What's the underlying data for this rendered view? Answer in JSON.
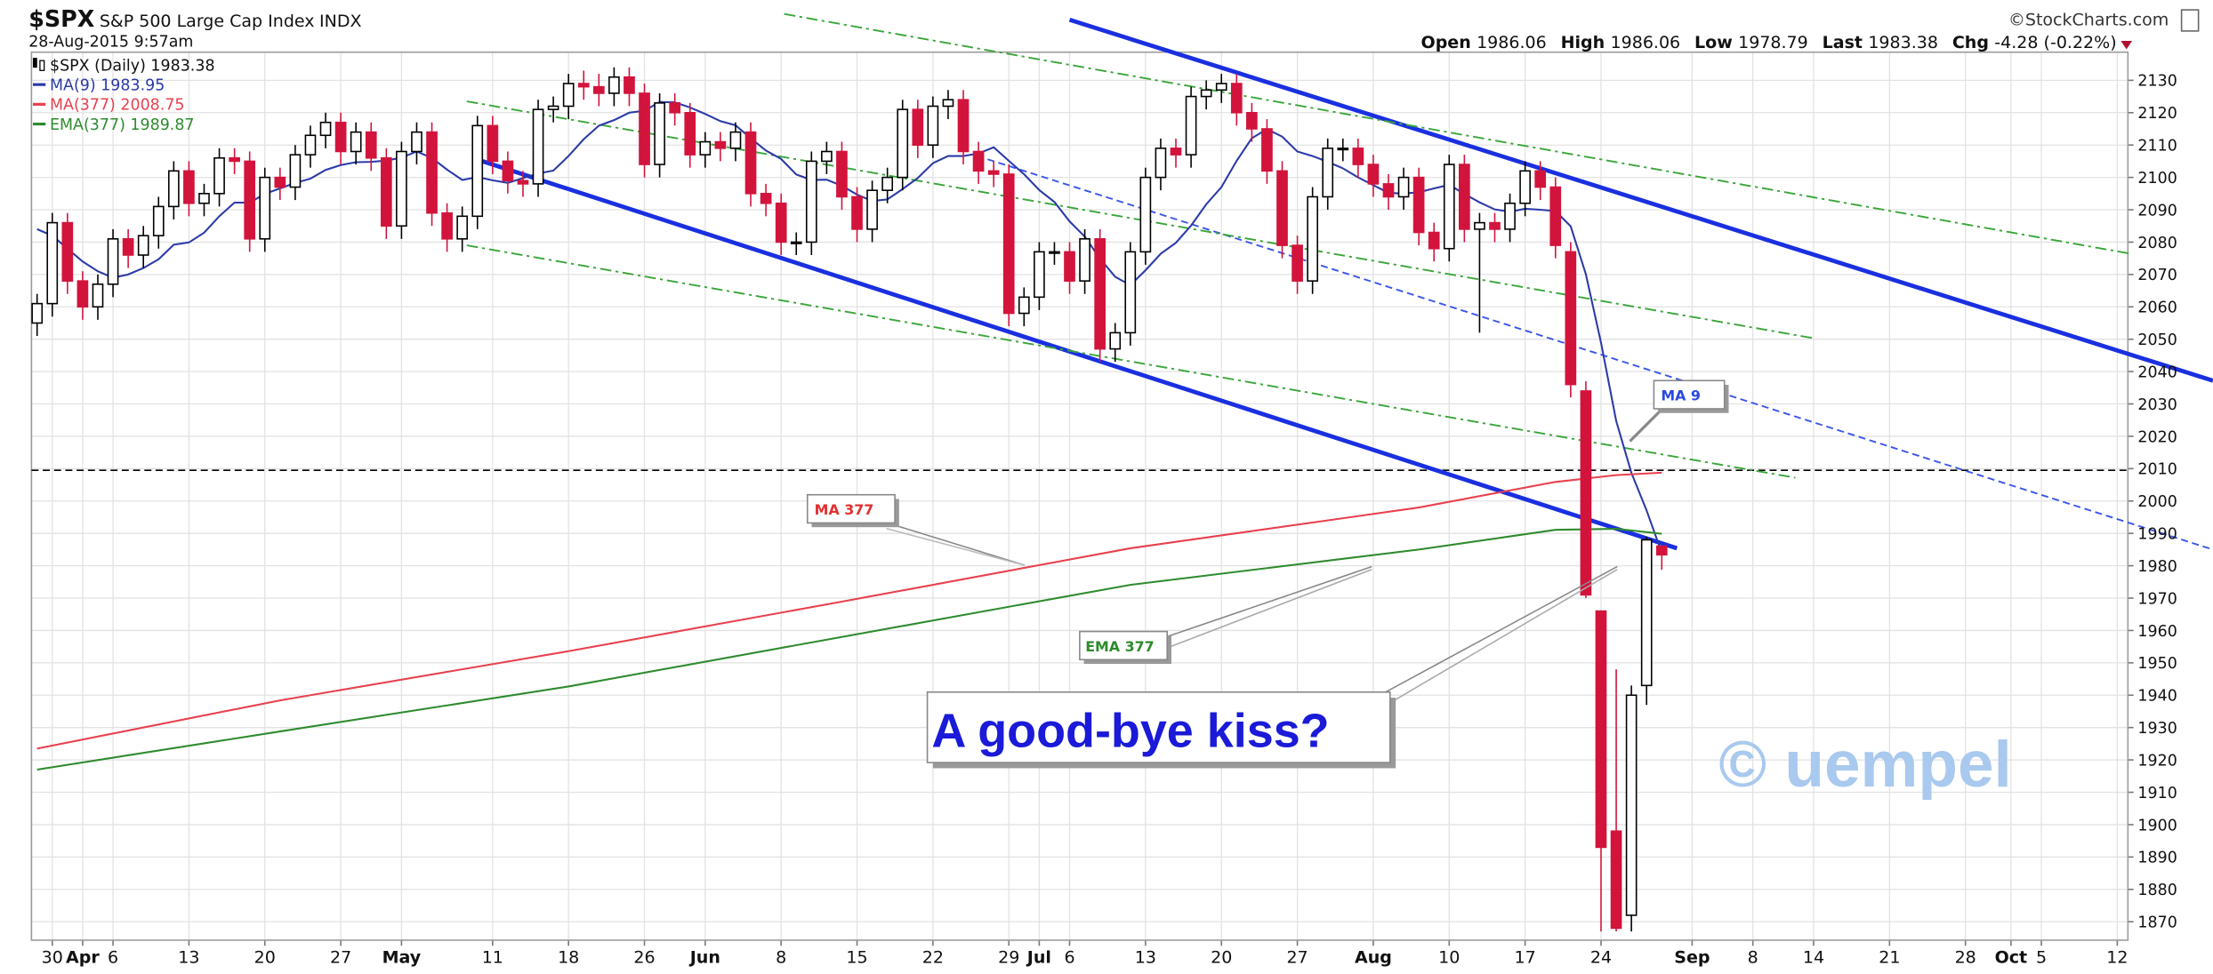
{
  "chart_data": {
    "type": "candlestick",
    "symbol": "$SPX",
    "title": "S&P 500 Large Cap Index",
    "exchange": "INDX",
    "timestamp": "28-Aug-2015 9:57am",
    "source": "©StockCharts.com",
    "quote": [
      {
        "label": "Open",
        "value": 1986.06
      },
      {
        "label": "High",
        "value": 1986.06
      },
      {
        "label": "Low",
        "value": 1978.79
      },
      {
        "label": "Last",
        "value": 1983.38
      },
      {
        "label": "Chg",
        "value": "-4.28 (-0.22%)"
      }
    ],
    "xlim": [
      -0.37,
      137.7
    ],
    "ylim": [
      1864.3,
      2138.7
    ],
    "yticks": [
      1870,
      1880,
      1890,
      1900,
      1910,
      1920,
      1930,
      1940,
      1950,
      1960,
      1970,
      1980,
      1990,
      2000,
      2010,
      2020,
      2030,
      2040,
      2050,
      2060,
      2070,
      2080,
      2090,
      2100,
      2110,
      2120,
      2130
    ],
    "xticks": [
      {
        "value": 1,
        "label": "30"
      },
      {
        "value": 3,
        "label": "Apr"
      },
      {
        "value": 5,
        "label": "6"
      },
      {
        "value": 10,
        "label": "13"
      },
      {
        "value": 15,
        "label": "20"
      },
      {
        "value": 20,
        "label": "27"
      },
      {
        "value": 24,
        "label": "May"
      },
      {
        "value": 30,
        "label": "11"
      },
      {
        "value": 35,
        "label": "18"
      },
      {
        "value": 40,
        "label": "26"
      },
      {
        "value": 44,
        "label": "Jun"
      },
      {
        "value": 49,
        "label": "8"
      },
      {
        "value": 54,
        "label": "15"
      },
      {
        "value": 59,
        "label": "22"
      },
      {
        "value": 64,
        "label": "29"
      },
      {
        "value": 66,
        "label": "Jul"
      },
      {
        "value": 68,
        "label": "6"
      },
      {
        "value": 73,
        "label": "13"
      },
      {
        "value": 78,
        "label": "20"
      },
      {
        "value": 83,
        "label": "27"
      },
      {
        "value": 88,
        "label": "Aug"
      },
      {
        "value": 93,
        "label": "10"
      },
      {
        "value": 98,
        "label": "17"
      },
      {
        "value": 103,
        "label": "24"
      },
      {
        "value": 109,
        "label": "Sep"
      },
      {
        "value": 113,
        "label": "8"
      },
      {
        "value": 117,
        "label": "14"
      },
      {
        "value": 122,
        "label": "21"
      },
      {
        "value": 127,
        "label": "28"
      },
      {
        "value": 130,
        "label": "Oct"
      },
      {
        "value": 132,
        "label": "5"
      },
      {
        "value": 137,
        "label": "12"
      }
    ],
    "grid": true,
    "candles": {
      "name": "$SPX (Daily) 1983.38",
      "up_color": "#000000",
      "down_color": "#d2143c",
      "x": [
        0,
        1,
        2,
        3,
        4,
        5,
        6,
        7,
        8,
        9,
        10,
        11,
        12,
        13,
        14,
        15,
        16,
        17,
        18,
        19,
        20,
        21,
        22,
        23,
        24,
        25,
        26,
        27,
        28,
        29,
        30,
        31,
        32,
        33,
        34,
        35,
        36,
        37,
        38,
        39,
        40,
        41,
        42,
        43,
        44,
        45,
        46,
        47,
        48,
        49,
        50,
        51,
        52,
        53,
        54,
        55,
        56,
        57,
        58,
        59,
        60,
        61,
        62,
        63,
        64,
        65,
        66,
        67,
        68,
        69,
        70,
        71,
        72,
        73,
        74,
        75,
        76,
        77,
        78,
        79,
        80,
        81,
        82,
        83,
        84,
        85,
        86,
        87,
        88,
        89,
        90,
        91,
        92,
        93,
        94,
        95,
        96,
        97,
        98,
        99,
        100,
        101,
        102,
        103,
        104,
        105,
        106,
        107
      ],
      "open": [
        2055,
        2061,
        2086,
        2068,
        2060,
        2067,
        2081,
        2076,
        2082,
        2091,
        2102,
        2092,
        2095,
        2106,
        2105,
        2081,
        2100,
        2097,
        2107,
        2113,
        2117,
        2108,
        2114,
        2106,
        2085,
        2108,
        2114,
        2089,
        2081,
        2088,
        2116,
        2105,
        2099,
        2098,
        2121,
        2122,
        2129,
        2128,
        2126,
        2131,
        2126,
        2104,
        2123,
        2120,
        2107,
        2111,
        2109,
        2114,
        2095,
        2092,
        2080,
        2080,
        2105,
        2108,
        2094,
        2084,
        2096,
        2100,
        2121,
        2110,
        2122,
        2124,
        2108,
        2102,
        2101,
        2058,
        2063,
        2077,
        2077,
        2068,
        2081,
        2047,
        2052,
        2077,
        2100,
        2109,
        2107,
        2125,
        2127,
        2129,
        2120,
        2115,
        2102,
        2079,
        2068,
        2094,
        2109,
        2109,
        2104,
        2098,
        2094,
        2100,
        2083,
        2078,
        2104,
        2084,
        2086,
        2084,
        2092,
        2102,
        2097,
        2077,
        2034,
        1966,
        1898,
        1872,
        1943,
        1986.06
      ],
      "high": [
        2064,
        2089,
        2089,
        2071,
        2070,
        2084,
        2084,
        2085,
        2094,
        2105,
        2105,
        2098,
        2109,
        2109,
        2108,
        2103,
        2103,
        2110,
        2116,
        2120,
        2120,
        2117,
        2117,
        2109,
        2111,
        2117,
        2117,
        2092,
        2091,
        2119,
        2119,
        2108,
        2102,
        2124,
        2125,
        2132,
        2133,
        2132,
        2134,
        2134,
        2129,
        2126,
        2126,
        2123,
        2114,
        2114,
        2117,
        2117,
        2098,
        2095,
        2083,
        2108,
        2111,
        2111,
        2097,
        2099,
        2103,
        2124,
        2124,
        2125,
        2127,
        2127,
        2111,
        2105,
        2104,
        2066,
        2080,
        2080,
        2080,
        2084,
        2084,
        2055,
        2080,
        2103,
        2112,
        2112,
        2128,
        2130,
        2132,
        2132,
        2123,
        2118,
        2105,
        2082,
        2097,
        2112,
        2112,
        2112,
        2107,
        2101,
        2103,
        2103,
        2086,
        2107,
        2107,
        2089,
        2089,
        2095,
        2105,
        2105,
        2100,
        2080,
        2037,
        1966,
        1948,
        1943,
        1989,
        1986.06
      ],
      "low": [
        2051,
        2057,
        2064,
        2056,
        2056,
        2063,
        2072,
        2072,
        2078,
        2087,
        2088,
        2088,
        2091,
        2101,
        2077,
        2077,
        2093,
        2093,
        2103,
        2109,
        2104,
        2104,
        2102,
        2081,
        2081,
        2104,
        2085,
        2077,
        2077,
        2084,
        2101,
        2095,
        2094,
        2094,
        2117,
        2118,
        2124,
        2122,
        2122,
        2122,
        2100,
        2100,
        2116,
        2103,
        2103,
        2105,
        2105,
        2091,
        2088,
        2076,
        2076,
        2076,
        2101,
        2090,
        2080,
        2080,
        2092,
        2096,
        2106,
        2106,
        2118,
        2104,
        2098,
        2097,
        2054,
        2054,
        2059,
        2073,
        2064,
        2064,
        2043,
        2043,
        2048,
        2073,
        2096,
        2103,
        2103,
        2121,
        2123,
        2116,
        2111,
        2098,
        2075,
        2064,
        2064,
        2090,
        2105,
        2100,
        2094,
        2090,
        2090,
        2079,
        2074,
        2074,
        2080,
        2052,
        2080,
        2080,
        2088,
        2093,
        2075,
        2032,
        1970,
        1867,
        1867,
        1867,
        1937,
        1978.79
      ],
      "close": [
        2061,
        2086,
        2068,
        2060,
        2067,
        2081,
        2076,
        2082,
        2091,
        2102,
        2092,
        2095,
        2106,
        2105,
        2081,
        2100,
        2097,
        2107,
        2113,
        2117,
        2108,
        2114,
        2106,
        2085,
        2108,
        2114,
        2089,
        2081,
        2088,
        2116,
        2105,
        2099,
        2098,
        2121,
        2122,
        2129,
        2128,
        2126,
        2131,
        2126,
        2104,
        2123,
        2120,
        2107,
        2111,
        2109,
        2114,
        2095,
        2092,
        2080,
        2080,
        2105,
        2108,
        2094,
        2084,
        2096,
        2100,
        2121,
        2110,
        2122,
        2124,
        2108,
        2102,
        2101,
        2058,
        2063,
        2077,
        2077,
        2068,
        2081,
        2047,
        2052,
        2077,
        2100,
        2109,
        2107,
        2125,
        2127,
        2129,
        2120,
        2115,
        2102,
        2079,
        2068,
        2094,
        2109,
        2109,
        2104,
        2098,
        2094,
        2100,
        2083,
        2078,
        2104,
        2084,
        2086,
        2084,
        2092,
        2102,
        2097,
        2079,
        2036,
        1971,
        1893,
        1868,
        1940,
        1988,
        1983.38
      ]
    },
    "series": [
      {
        "name": "MA(9) 1983.95",
        "color": "#2b3aa8",
        "values": [
          2084,
          2082,
          2078,
          2074,
          2071,
          2069,
          2070,
          2072,
          2074.7,
          2079.2,
          2079.9,
          2082.9,
          2088,
          2092.2,
          2092.2,
          2094.9,
          2096.6,
          2098.3,
          2099.6,
          2102.3,
          2103.8,
          2104.7,
          2104.8,
          2105.2,
          2106.1,
          2108,
          2106,
          2102.4,
          2099.2,
          2100.1,
          2099.1,
          2098.3,
          2099.8,
          2101.2,
          2102.1,
          2106.6,
          2111.8,
          2116,
          2117.7,
          2120,
          2120.6,
          2123.3,
          2123.2,
          2121.6,
          2119.6,
          2117.4,
          2116.1,
          2112.1,
          2108.3,
          2105.7,
          2100.9,
          2099.2,
          2099.3,
          2097.4,
          2094.7,
          2092.7,
          2093.2,
          2096.4,
          2099.8,
          2104.4,
          2106.6,
          2106.6,
          2107.4,
          2109.3,
          2105.1,
          2101,
          2096.1,
          2092.4,
          2086.4,
          2081.7,
          2074.9,
          2069.3,
          2066.7,
          2071.3,
          2076.4,
          2079.8,
          2085.1,
          2091.7,
          2097,
          2105.1,
          2112.1,
          2114.9,
          2112.6,
          2108,
          2106.6,
          2104.8,
          2102.8,
          2100,
          2097.6,
          2095.2,
          2095,
          2095.4,
          2096.6,
          2097.7,
          2094.9,
          2092.3,
          2090.1,
          2089.4,
          2090.3,
          2090,
          2089.6,
          2084.9,
          2070.1,
          2048.9,
          2024.7,
          2008.7,
          1997.1,
          1983.95
        ]
      },
      {
        "name": "MA(377) 2008.75",
        "color": "#e8404e",
        "x": [
          0,
          16,
          35,
          53,
          72,
          91,
          100,
          104,
          107
        ],
        "values": [
          1923.5,
          1938.4,
          1953.6,
          1968.9,
          1985.4,
          1998,
          2005.9,
          2008,
          2008.75
        ]
      },
      {
        "name": "EMA(377) 1989.87",
        "color": "#2e8b2e",
        "x": [
          0,
          16,
          35,
          53,
          72,
          91,
          100,
          104,
          107
        ],
        "values": [
          1917,
          1928.8,
          1942.7,
          1958,
          1974.1,
          1985,
          1991.1,
          1991.4,
          1989.87
        ]
      }
    ],
    "trendlines": [
      {
        "x": [
          68,
          143.3
        ],
        "values": [
          2148.7,
          2037.2
        ],
        "color": "#1a2fe0",
        "style": "solid"
      },
      {
        "x": [
          29.2,
          108
        ],
        "values": [
          2105.2,
          1985.4
        ],
        "color": "#1a2fe0",
        "style": "solid"
      },
      {
        "x": [
          62.6,
          143.3
        ],
        "values": [
          2105.6,
          1985
        ],
        "color": "#3a55e8",
        "style": "dashed"
      },
      {
        "x": [
          49.2,
          137.9
        ],
        "values": [
          2150.5,
          2076.4
        ],
        "color": "#3aa63a",
        "style": "dashdot"
      },
      {
        "x": [
          28.3,
          117
        ],
        "values": [
          2123.5,
          2050.3
        ],
        "color": "#3aa63a",
        "style": "dashdot"
      },
      {
        "x": [
          28.3,
          115.8
        ],
        "values": [
          2079,
          2007.2
        ],
        "color": "#3aa63a",
        "style": "dashdot"
      }
    ],
    "hline": {
      "value": 2009.5,
      "color": "#000000",
      "style": "dashed"
    },
    "annotations": {
      "ma9": "MA 9",
      "ma377": "MA 377",
      "ema377": "EMA 377",
      "kiss": "A good-bye kiss?",
      "watermark": "© uempel"
    }
  }
}
